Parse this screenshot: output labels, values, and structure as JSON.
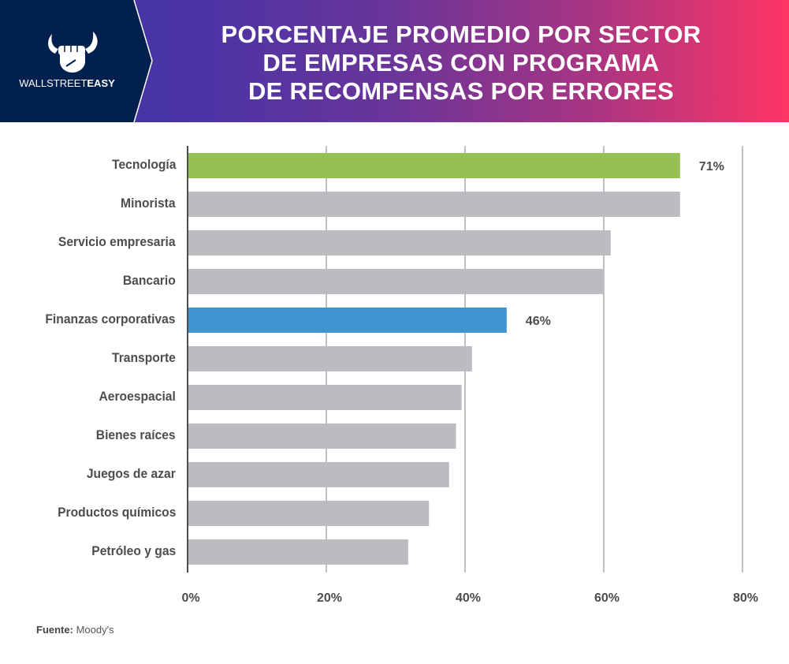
{
  "brand": {
    "name_light": "WALLSTREET",
    "name_bold": "EASY",
    "logo_icon": "bull-fist-icon"
  },
  "title_lines": [
    "PORCENTAJE PROMEDIO POR SECTOR",
    "DE EMPRESAS CON PROGRAMA",
    "DE RECOMPENSAS POR ERRORES"
  ],
  "source": {
    "label": "Fuente:",
    "value": "Moody's"
  },
  "colors": {
    "default_bar": "#bbbcc0",
    "highlight_green": "#95c052",
    "highlight_blue": "#4095d0",
    "text": "#4d4d4f",
    "header_left": "#3f35a6",
    "header_right": "#fe3565",
    "logo_bg": "#02204d"
  },
  "chart_data": {
    "type": "bar",
    "orientation": "horizontal",
    "title": "PORCENTAJE PROMEDIO POR SECTOR DE EMPRESAS CON PROGRAMA DE RECOMPENSAS POR ERRORES",
    "xlabel": "",
    "ylabel": "",
    "xlim": [
      0,
      80
    ],
    "grid": true,
    "x_ticks": [
      0,
      20,
      40,
      60,
      80
    ],
    "x_tick_labels": [
      "0%",
      "20%",
      "40%",
      "60%",
      "80%"
    ],
    "categories": [
      "Tecnología",
      "Minorista",
      "Servicio empresaria",
      "Bancario",
      "Finanzas corporativas",
      "Transporte",
      "Aeroespacial",
      "Bienes raíces",
      "Juegos de azar",
      "Productos químicos",
      "Petróleo y gas"
    ],
    "values": [
      71,
      71,
      61,
      60,
      46,
      41,
      39.5,
      38.7,
      37.7,
      34.8,
      31.8
    ],
    "highlight": [
      "green",
      "none",
      "none",
      "none",
      "blue",
      "none",
      "none",
      "none",
      "none",
      "none",
      "none"
    ],
    "data_labels": [
      "71%",
      "",
      "",
      "",
      "46%",
      "",
      "",
      "",
      "",
      "",
      ""
    ]
  }
}
